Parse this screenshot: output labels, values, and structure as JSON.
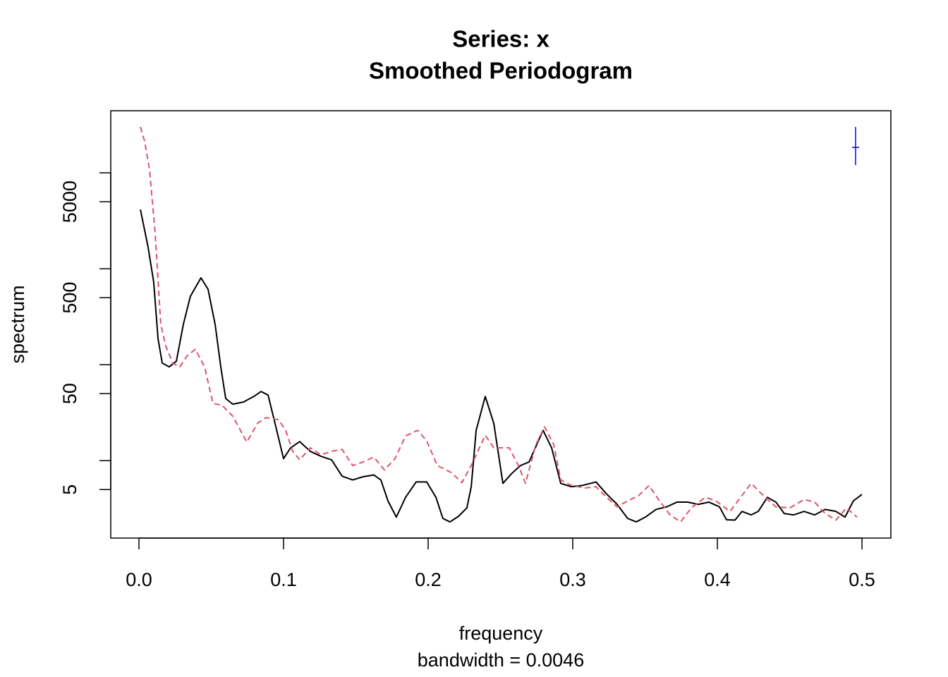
{
  "chart_data": {
    "type": "line",
    "title": "Series: x",
    "subtitle": "Smoothed Periodogram",
    "xlabel": "frequency",
    "xsublabel": "bandwidth = 0.0046",
    "ylabel": "spectrum",
    "log_y": true,
    "xlim": [
      -0.0195,
      0.52
    ],
    "ylim": [
      1.56,
      44400
    ],
    "xticks": [
      {
        "value": 0,
        "label": "0.0"
      },
      0.1,
      0.2,
      0.3,
      0.4,
      0.5
    ],
    "yticks": [
      5,
      50,
      500,
      5000
    ],
    "yticks_minor": [
      10,
      100,
      1000,
      10000
    ],
    "series": [
      {
        "color": "#000000",
        "dashed": false,
        "x": [
          0.001,
          0.0063,
          0.0102,
          0.0132,
          0.0161,
          0.021,
          0.0259,
          0.0307,
          0.0356,
          0.0429,
          0.0478,
          0.0527,
          0.0566,
          0.06,
          0.0649,
          0.0722,
          0.0795,
          0.0844,
          0.0893,
          0.0941,
          0.1,
          0.1049,
          0.1112,
          0.1185,
          0.1259,
          0.1332,
          0.1405,
          0.1478,
          0.1551,
          0.1624,
          0.1673,
          0.1722,
          0.178,
          0.1844,
          0.1917,
          0.199,
          0.2054,
          0.2102,
          0.2151,
          0.221,
          0.2268,
          0.2298,
          0.2332,
          0.2395,
          0.2454,
          0.2517,
          0.2576,
          0.2639,
          0.2698,
          0.2756,
          0.2795,
          0.2854,
          0.2917,
          0.299,
          0.3063,
          0.3161,
          0.3234,
          0.3307,
          0.338,
          0.3439,
          0.3502,
          0.3576,
          0.3649,
          0.3722,
          0.3795,
          0.3868,
          0.3941,
          0.4015,
          0.4063,
          0.4122,
          0.4171,
          0.4234,
          0.4283,
          0.4346,
          0.4405,
          0.4463,
          0.4527,
          0.46,
          0.4673,
          0.4746,
          0.482,
          0.4883,
          0.4941,
          0.5
        ],
        "values": [
          4150,
          1690,
          726,
          187,
          104,
          95,
          109,
          263,
          518,
          804,
          612,
          263,
          95,
          44.4,
          38.8,
          40.8,
          46.7,
          52.6,
          48.3,
          24.5,
          10.5,
          13.6,
          15.8,
          12.5,
          11.1,
          10.2,
          6.9,
          6.3,
          6.8,
          7.1,
          6.3,
          3.81,
          2.58,
          4.15,
          6.0,
          6.0,
          4.15,
          2.5,
          2.3,
          2.63,
          3.22,
          5.35,
          20.7,
          46.7,
          24.5,
          5.8,
          7.3,
          8.9,
          9.7,
          15.3,
          20.7,
          13.6,
          5.8,
          5.35,
          5.5,
          6.0,
          4.5,
          3.5,
          2.5,
          2.3,
          2.58,
          3.1,
          3.3,
          3.7,
          3.7,
          3.5,
          3.7,
          3.3,
          2.42,
          2.4,
          2.96,
          2.72,
          2.96,
          4.15,
          3.7,
          2.81,
          2.72,
          2.96,
          2.72,
          3.1,
          2.96,
          2.58,
          3.81,
          4.45
        ]
      },
      {
        "color": "#DF536B",
        "dashed": true,
        "x": [
          0.001,
          0.0039,
          0.0073,
          0.0112,
          0.0151,
          0.0185,
          0.0234,
          0.0283,
          0.0332,
          0.039,
          0.0454,
          0.0512,
          0.0576,
          0.0649,
          0.0746,
          0.082,
          0.0878,
          0.0966,
          0.1015,
          0.1063,
          0.1112,
          0.1185,
          0.1259,
          0.1332,
          0.1405,
          0.1478,
          0.1551,
          0.1624,
          0.1698,
          0.1771,
          0.1844,
          0.1927,
          0.199,
          0.2063,
          0.2161,
          0.2234,
          0.2298,
          0.2395,
          0.2454,
          0.2512,
          0.2561,
          0.2624,
          0.2673,
          0.2746,
          0.2805,
          0.2868,
          0.2917,
          0.299,
          0.3088,
          0.3161,
          0.3234,
          0.3307,
          0.338,
          0.3454,
          0.3527,
          0.36,
          0.3673,
          0.3746,
          0.382,
          0.3917,
          0.399,
          0.4088,
          0.4161,
          0.4234,
          0.4307,
          0.4405,
          0.4502,
          0.46,
          0.4673,
          0.4746,
          0.482,
          0.4893,
          0.4966
        ],
        "values": [
          30100,
          21400,
          10900,
          2370,
          263,
          158,
          104,
          95,
          123,
          145,
          95,
          39.5,
          37.6,
          29.1,
          15.6,
          24.5,
          28.1,
          26.7,
          20.7,
          12.5,
          10.2,
          13.6,
          11.5,
          12.5,
          13.1,
          8.9,
          9.7,
          10.9,
          8.0,
          10.5,
          18.1,
          20.7,
          16.1,
          8.9,
          7.5,
          5.9,
          8.9,
          18.4,
          13.6,
          13.6,
          13.6,
          8.9,
          5.8,
          14.8,
          22.5,
          14.8,
          6.3,
          5.5,
          5.2,
          5.35,
          4.15,
          3.3,
          3.81,
          4.3,
          5.5,
          3.81,
          2.72,
          2.3,
          3.22,
          4.15,
          3.81,
          2.96,
          4.15,
          5.8,
          4.5,
          3.3,
          3.22,
          3.94,
          3.7,
          2.81,
          2.4,
          3.22,
          2.58
        ]
      }
    ],
    "ci": {
      "x": 0.4956,
      "center": 18400,
      "lower": 12050,
      "upper": 30100,
      "color": "#0000FF"
    }
  }
}
